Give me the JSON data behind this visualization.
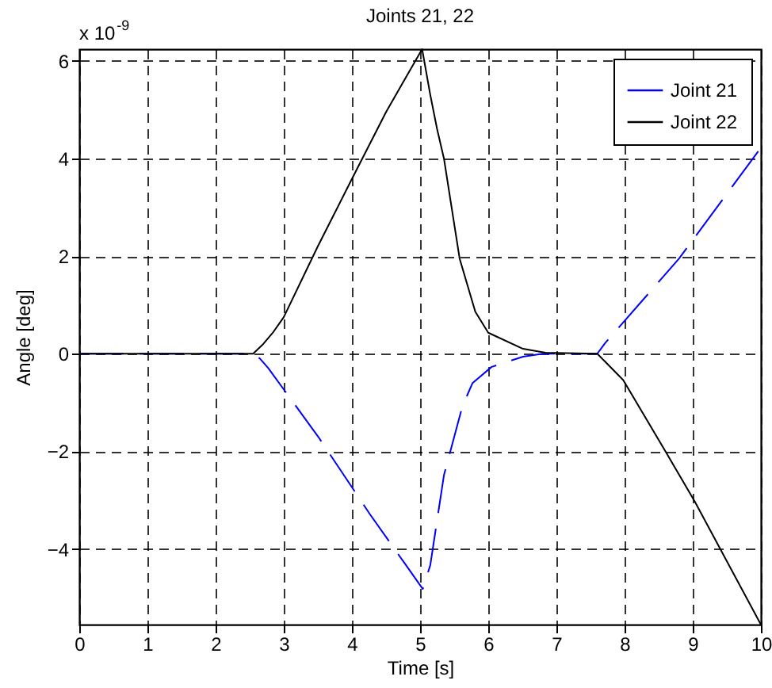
{
  "chart_data": {
    "type": "line",
    "title": "Joints 21, 22",
    "xlabel": "Time [s]",
    "ylabel": "Angle [deg]",
    "annotations": [
      "x 10$^{-9}$"
    ],
    "xlim": [
      0,
      10
    ],
    "xticks": [
      0,
      1,
      2,
      3,
      4,
      5,
      6,
      7,
      8,
      9,
      10
    ],
    "ylim": [
      -5.55,
      6.24
    ],
    "yticks": [
      -4,
      -2,
      0,
      2,
      4,
      6
    ],
    "grid": true,
    "legend": "top right",
    "series": [
      {
        "name": "Joint 21",
        "color": "#0000ff",
        "line_style": "dashed",
        "x": [
          0,
          2.55,
          2.65,
          2.77,
          3.51,
          4.26,
          5.04,
          5.15,
          5.35,
          5.62,
          5.77,
          6.05,
          6.51,
          6.8,
          7.6,
          7.71,
          8.8,
          10
        ],
        "values": [
          0,
          0,
          -0.1,
          -0.29,
          -1.71,
          -3.28,
          -4.82,
          -4.33,
          -2.49,
          -1.08,
          -0.6,
          -0.27,
          -0.06,
          0,
          0,
          0.21,
          1.95,
          4.22
        ]
      },
      {
        "name": "Joint 22",
        "color": "#000000",
        "x": [
          0,
          2.55,
          2.7,
          2.85,
          3,
          3.5,
          4,
          4.5,
          5.03,
          5.15,
          5.25,
          5.35,
          5.58,
          5.81,
          6,
          6.51,
          6.84,
          7.6,
          7.98,
          8.6,
          9.03,
          10
        ],
        "values": [
          0,
          0,
          0.2,
          0.45,
          0.75,
          2.2,
          3.58,
          4.95,
          6.24,
          5.3,
          4.6,
          4,
          1.95,
          0.86,
          0.43,
          0.1,
          0.02,
          0,
          -0.54,
          -2,
          -3.03,
          -5.55
        ]
      }
    ]
  }
}
